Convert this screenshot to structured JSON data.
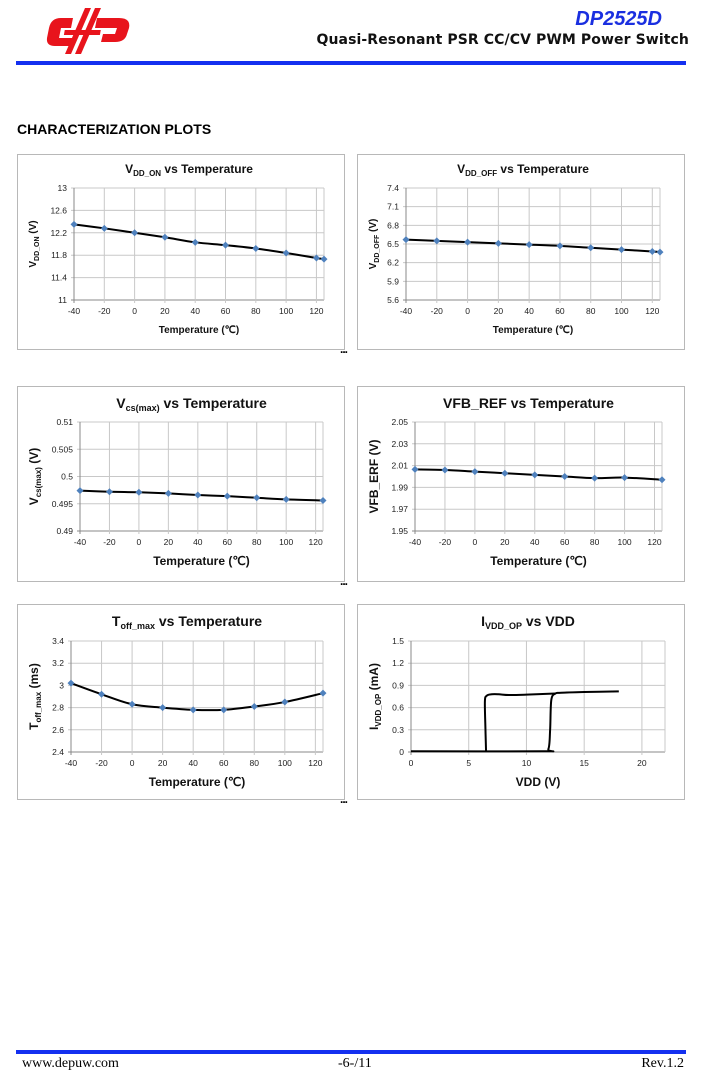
{
  "header": {
    "logo_text": "DP",
    "product": "DP2525D",
    "subtitle": "Quasi-Resonant PSR CC/CV PWM Power Switch",
    "brand_color": "#1430f0",
    "logo_color": "#e8141c"
  },
  "section_title": "CHARACTERIZATION PLOTS",
  "ellipsis": "...",
  "chart_data": [
    {
      "type": "line",
      "title": {
        "main": "V",
        "sub": "DD_ON",
        "rest": " vs Temperature"
      },
      "ylabel": {
        "main": "V",
        "sub": "DD_ON",
        "rest": " (V)"
      },
      "xlabel": "Temperature (℃)",
      "x": [
        -40,
        -20,
        0,
        20,
        40,
        60,
        80,
        100,
        120,
        125
      ],
      "series": [
        {
          "values": [
            12.35,
            12.28,
            12.2,
            12.12,
            12.03,
            11.98,
            11.92,
            11.84,
            11.75,
            11.73
          ]
        }
      ],
      "xlim": [
        -40,
        125
      ],
      "ylim": [
        11,
        13
      ],
      "xticks": [
        "-40",
        "-20",
        "0",
        "20",
        "40",
        "60",
        "80",
        "100",
        "120"
      ],
      "yticks": [
        "11",
        "11.4",
        "11.8",
        "12.2",
        "12.6",
        "13"
      ],
      "grid": true,
      "markers": true,
      "marker_color": "#4f81bd",
      "line_color": "#000000"
    },
    {
      "type": "line",
      "title": {
        "main": "V",
        "sub": "DD_OFF",
        "rest": "  vs Temperature"
      },
      "ylabel": {
        "main": "V",
        "sub": "DD_OFF",
        "rest": " (V)"
      },
      "xlabel": "Temperature (℃)",
      "x": [
        -40,
        -20,
        0,
        20,
        40,
        60,
        80,
        100,
        120,
        125
      ],
      "series": [
        {
          "values": [
            6.57,
            6.55,
            6.53,
            6.51,
            6.49,
            6.47,
            6.44,
            6.41,
            6.38,
            6.37
          ]
        }
      ],
      "xlim": [
        -40,
        125
      ],
      "ylim": [
        5.6,
        7.4
      ],
      "xticks": [
        "-40",
        "-20",
        "0",
        "20",
        "40",
        "60",
        "80",
        "100",
        "120"
      ],
      "yticks": [
        "5.6",
        "5.9",
        "6.2",
        "6.5",
        "6.8",
        "7.1",
        "7.4"
      ],
      "grid": true,
      "markers": true,
      "marker_color": "#4f81bd",
      "line_color": "#000000"
    },
    {
      "type": "line",
      "title": {
        "main": "V",
        "sub": "cs(max)",
        "rest": " vs Temperature"
      },
      "ylabel": {
        "main": "V",
        "sub": "cs(max)",
        "rest": " (V)"
      },
      "xlabel": "Temperature (℃)",
      "x": [
        -40,
        -20,
        0,
        20,
        40,
        60,
        80,
        100,
        125
      ],
      "series": [
        {
          "values": [
            0.4974,
            0.4972,
            0.4971,
            0.4969,
            0.4966,
            0.4964,
            0.4961,
            0.4958,
            0.4956
          ]
        }
      ],
      "xlim": [
        -40,
        125
      ],
      "ylim": [
        0.49,
        0.51
      ],
      "xticks": [
        "-40",
        "-20",
        "0",
        "20",
        "40",
        "60",
        "80",
        "100",
        "120"
      ],
      "yticks": [
        "0.49",
        "0.495",
        "0.5",
        "0.505",
        "0.51"
      ],
      "grid": true,
      "markers": true,
      "marker_color": "#4f81bd",
      "line_color": "#000000"
    },
    {
      "type": "line",
      "title": {
        "main": "VFB_REF",
        "sub": "",
        "rest": " vs Temperature"
      },
      "ylabel": {
        "main": "VFB_ERF",
        "sub": "",
        "rest": " (V)"
      },
      "xlabel": "Temperature (℃)",
      "x": [
        -40,
        -20,
        0,
        20,
        40,
        60,
        80,
        100,
        125
      ],
      "series": [
        {
          "values": [
            2.0065,
            2.006,
            2.0045,
            2.003,
            2.0015,
            2.0,
            1.9985,
            1.999,
            1.997
          ]
        }
      ],
      "xlim": [
        -40,
        125
      ],
      "ylim": [
        1.95,
        2.05
      ],
      "xticks": [
        "-40",
        "-20",
        "0",
        "20",
        "40",
        "60",
        "80",
        "100",
        "120"
      ],
      "yticks": [
        "1.95",
        "1.97",
        "1.99",
        "2.01",
        "2.03",
        "2.05"
      ],
      "grid": true,
      "markers": true,
      "marker_color": "#4f81bd",
      "line_color": "#000000"
    },
    {
      "type": "line",
      "title": {
        "main": "T",
        "sub": "off_max",
        "rest": " vs Temperature"
      },
      "ylabel": {
        "main": "T",
        "sub": "off_max",
        "rest": " (ms)"
      },
      "xlabel": "Temperature (℃)",
      "x": [
        -40,
        -20,
        0,
        20,
        40,
        60,
        80,
        100,
        125
      ],
      "series": [
        {
          "values": [
            3.02,
            2.92,
            2.83,
            2.8,
            2.78,
            2.78,
            2.81,
            2.85,
            2.93
          ]
        }
      ],
      "xlim": [
        -40,
        125
      ],
      "ylim": [
        2.4,
        3.4
      ],
      "xticks": [
        "-40",
        "-20",
        "0",
        "20",
        "40",
        "60",
        "80",
        "100",
        "120"
      ],
      "yticks": [
        "2.4",
        "2.6",
        "2.8",
        "3",
        "3.2",
        "3.4"
      ],
      "grid": true,
      "markers": true,
      "marker_color": "#4f81bd",
      "line_color": "#000000"
    },
    {
      "type": "line",
      "title": {
        "main": "I",
        "sub": "VDD_OP",
        "rest": " vs VDD"
      },
      "ylabel": {
        "main": "I",
        "sub": "VDD_OP",
        "rest": " (mA)"
      },
      "xlabel": "VDD (V)",
      "series": [
        {
          "x": [
            0,
            11.3,
            11.9,
            12.05,
            12.15,
            12.5,
            13,
            15,
            18
          ],
          "values": [
            0.01,
            0.01,
            0.04,
            0.3,
            0.7,
            0.79,
            0.8,
            0.81,
            0.82
          ]
        },
        {
          "x": [
            6.5,
            6.45,
            6.4,
            6.55,
            7,
            7.6,
            8.5,
            10,
            12.5
          ],
          "values": [
            0.01,
            0.3,
            0.68,
            0.76,
            0.78,
            0.78,
            0.77,
            0.775,
            0.79
          ]
        }
      ],
      "xlim": [
        0,
        22
      ],
      "ylim": [
        0,
        1.5
      ],
      "xticks": [
        "0",
        "5",
        "10",
        "15",
        "20"
      ],
      "yticks": [
        "0",
        "0.3",
        "0.6",
        "0.9",
        "1.2",
        "1.5"
      ],
      "grid": true,
      "markers": false,
      "line_color": "#000000"
    }
  ],
  "footer": {
    "website": "www.depuw.com",
    "page": "-6-/11",
    "revision": "Rev.1.2"
  }
}
